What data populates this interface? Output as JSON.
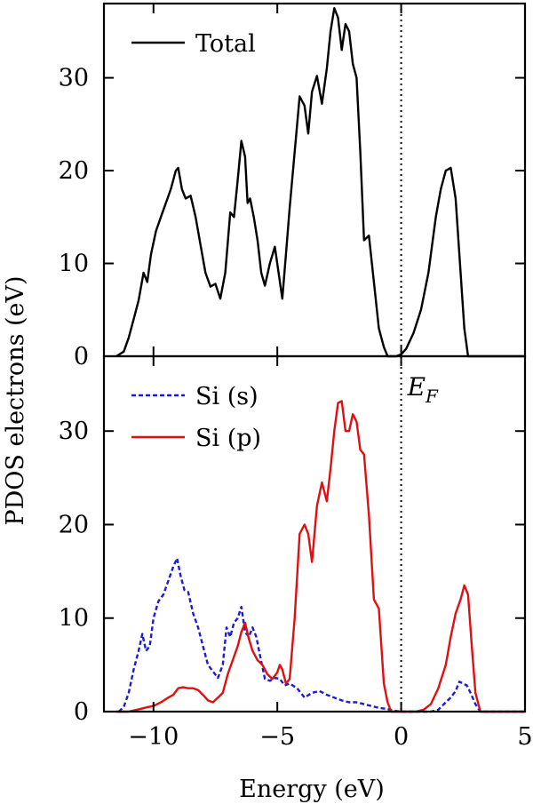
{
  "chart_data": [
    {
      "type": "line",
      "panel": "top",
      "xlim": [
        -12,
        5
      ],
      "ylim": [
        0,
        38
      ],
      "yticks": [
        0,
        10,
        20,
        30
      ],
      "legend_position": "top-left",
      "reference_line": {
        "x": 0,
        "style": "dotted"
      },
      "series": [
        {
          "name": "Total",
          "color": "#000000",
          "style": "solid",
          "x": [
            -11.5,
            -11.2,
            -11.0,
            -10.8,
            -10.6,
            -10.4,
            -10.25,
            -10.1,
            -9.9,
            -9.7,
            -9.5,
            -9.3,
            -9.1,
            -9.0,
            -8.85,
            -8.7,
            -8.5,
            -8.3,
            -8.1,
            -7.9,
            -7.7,
            -7.5,
            -7.3,
            -7.1,
            -6.9,
            -6.75,
            -6.6,
            -6.45,
            -6.3,
            -6.2,
            -6.1,
            -5.95,
            -5.8,
            -5.65,
            -5.5,
            -5.3,
            -5.1,
            -4.95,
            -4.8,
            -4.65,
            -4.5,
            -4.3,
            -4.1,
            -3.9,
            -3.75,
            -3.6,
            -3.4,
            -3.2,
            -3.0,
            -2.85,
            -2.7,
            -2.55,
            -2.4,
            -2.25,
            -2.1,
            -1.95,
            -1.8,
            -1.65,
            -1.5,
            -1.3,
            -1.1,
            -0.9,
            -0.7,
            -0.55,
            -0.4,
            -0.2,
            0.0,
            0.2,
            0.5,
            0.8,
            1.1,
            1.4,
            1.6,
            1.8,
            2.0,
            2.2,
            2.4,
            2.55,
            2.7,
            2.85,
            3.0,
            3.2,
            3.5,
            5.0
          ],
          "y": [
            0,
            0.5,
            2,
            4,
            6,
            9,
            8,
            11,
            13.5,
            15,
            16.5,
            18,
            20,
            20.3,
            18,
            17,
            17.3,
            15,
            12,
            9,
            7.5,
            7.8,
            6.2,
            9,
            15.5,
            15,
            19,
            23.2,
            21.5,
            16.5,
            17,
            15,
            12.5,
            9,
            7.6,
            10,
            11.8,
            9,
            6.2,
            11,
            16,
            22,
            28,
            27,
            24,
            28.5,
            30.2,
            27.2,
            31,
            35,
            37.5,
            36.5,
            33,
            35.8,
            35,
            31.5,
            30,
            22,
            12.5,
            13,
            8,
            3,
            1,
            0,
            0,
            0,
            0.2,
            0.8,
            2.5,
            5,
            9,
            15,
            18,
            20,
            20.3,
            17,
            9,
            3,
            0,
            0,
            0,
            0,
            0,
            0
          ]
        }
      ]
    },
    {
      "type": "line",
      "panel": "bottom",
      "xlim": [
        -12,
        5
      ],
      "ylim": [
        0,
        38
      ],
      "yticks": [
        0,
        10,
        20,
        30
      ],
      "xticks": [
        -10,
        -5,
        0,
        5
      ],
      "xlabel": "Energy (eV)",
      "legend_position": "top-left",
      "reference_line": {
        "x": 0,
        "style": "dotted",
        "label": "E",
        "label_sub": "F"
      },
      "series": [
        {
          "name": "Si (s)",
          "color": "#1c1cd2",
          "style": "dashed",
          "x": [
            -11.4,
            -11.2,
            -11.0,
            -10.8,
            -10.6,
            -10.45,
            -10.3,
            -10.15,
            -10.0,
            -9.8,
            -9.6,
            -9.4,
            -9.2,
            -9.05,
            -8.9,
            -8.75,
            -8.6,
            -8.4,
            -8.2,
            -8.0,
            -7.8,
            -7.6,
            -7.4,
            -7.2,
            -7.05,
            -6.9,
            -6.75,
            -6.6,
            -6.45,
            -6.3,
            -6.15,
            -6.0,
            -5.85,
            -5.7,
            -5.5,
            -5.3,
            -5.1,
            -4.9,
            -4.7,
            -4.5,
            -4.2,
            -3.9,
            -3.6,
            -3.3,
            -3.0,
            -2.7,
            -2.4,
            -2.1,
            -1.8,
            -1.5,
            -1.2,
            -0.9,
            -0.6,
            -0.3,
            0.0,
            0.3,
            0.6,
            0.9,
            1.2,
            1.5,
            1.8,
            2.0,
            2.2,
            2.35,
            2.5,
            2.65,
            2.8,
            3.0,
            3.2,
            3.5,
            5.0
          ],
          "y": [
            0,
            0.5,
            2,
            4.5,
            6.5,
            8.3,
            6.5,
            7,
            10,
            11.8,
            12.5,
            14,
            15.5,
            16.4,
            14.5,
            13,
            12.8,
            10.5,
            9,
            7,
            5,
            4.3,
            3.6,
            5,
            9,
            8,
            9.5,
            10,
            11.2,
            8.5,
            8,
            9,
            8,
            6,
            3.5,
            3.3,
            3.6,
            3.5,
            2.8,
            3.0,
            2.5,
            1.5,
            2.0,
            2.2,
            1.8,
            1.5,
            1.2,
            1.0,
            1.0,
            0.8,
            0.6,
            0.4,
            0.3,
            0.1,
            0,
            0,
            0,
            0,
            0,
            0.2,
            1.0,
            1.5,
            2.2,
            3.2,
            3.0,
            2.8,
            2.0,
            0.8,
            0,
            0,
            0
          ]
        },
        {
          "name": "Si (p)",
          "color": "#e01010",
          "style": "solid",
          "x": [
            -11.5,
            -11.0,
            -10.5,
            -10.2,
            -10.0,
            -9.7,
            -9.4,
            -9.2,
            -9.0,
            -8.8,
            -8.6,
            -8.4,
            -8.2,
            -8.0,
            -7.8,
            -7.6,
            -7.4,
            -7.2,
            -7.0,
            -6.8,
            -6.6,
            -6.45,
            -6.3,
            -6.15,
            -6.0,
            -5.8,
            -5.6,
            -5.4,
            -5.2,
            -5.0,
            -4.9,
            -4.8,
            -4.65,
            -4.5,
            -4.3,
            -4.1,
            -3.9,
            -3.75,
            -3.6,
            -3.4,
            -3.2,
            -3.0,
            -2.85,
            -2.7,
            -2.55,
            -2.4,
            -2.25,
            -2.1,
            -1.95,
            -1.8,
            -1.65,
            -1.5,
            -1.3,
            -1.1,
            -0.9,
            -0.7,
            -0.55,
            -0.4,
            -0.2,
            0.0,
            0.3,
            0.6,
            0.9,
            1.2,
            1.5,
            1.8,
            2.0,
            2.2,
            2.4,
            2.55,
            2.7,
            2.85,
            3.0,
            3.2,
            3.5,
            5.0
          ],
          "y": [
            0,
            0,
            0.3,
            0.5,
            0.6,
            1.0,
            1.5,
            1.8,
            2.5,
            2.6,
            2.5,
            2.5,
            2.3,
            1.8,
            1.2,
            1.0,
            1.5,
            2.0,
            4,
            5.5,
            7,
            8.5,
            9.5,
            7.8,
            6.5,
            5.5,
            5.0,
            4.0,
            3.5,
            4.2,
            5.0,
            4.5,
            3.0,
            3.5,
            10,
            19,
            20,
            19,
            16,
            22,
            24.5,
            22.5,
            26,
            30,
            33,
            33.2,
            30,
            30,
            31.8,
            31,
            28,
            27.5,
            21,
            12,
            11,
            3,
            1,
            0,
            0,
            0,
            0,
            0,
            0.2,
            0.8,
            2.5,
            5,
            8,
            10.5,
            12,
            13.5,
            12.5,
            7,
            2,
            0,
            0,
            0
          ]
        }
      ]
    }
  ],
  "axes": {
    "ylabel": "PDOS electrons (eV)",
    "xlabel": "Energy (eV)"
  }
}
